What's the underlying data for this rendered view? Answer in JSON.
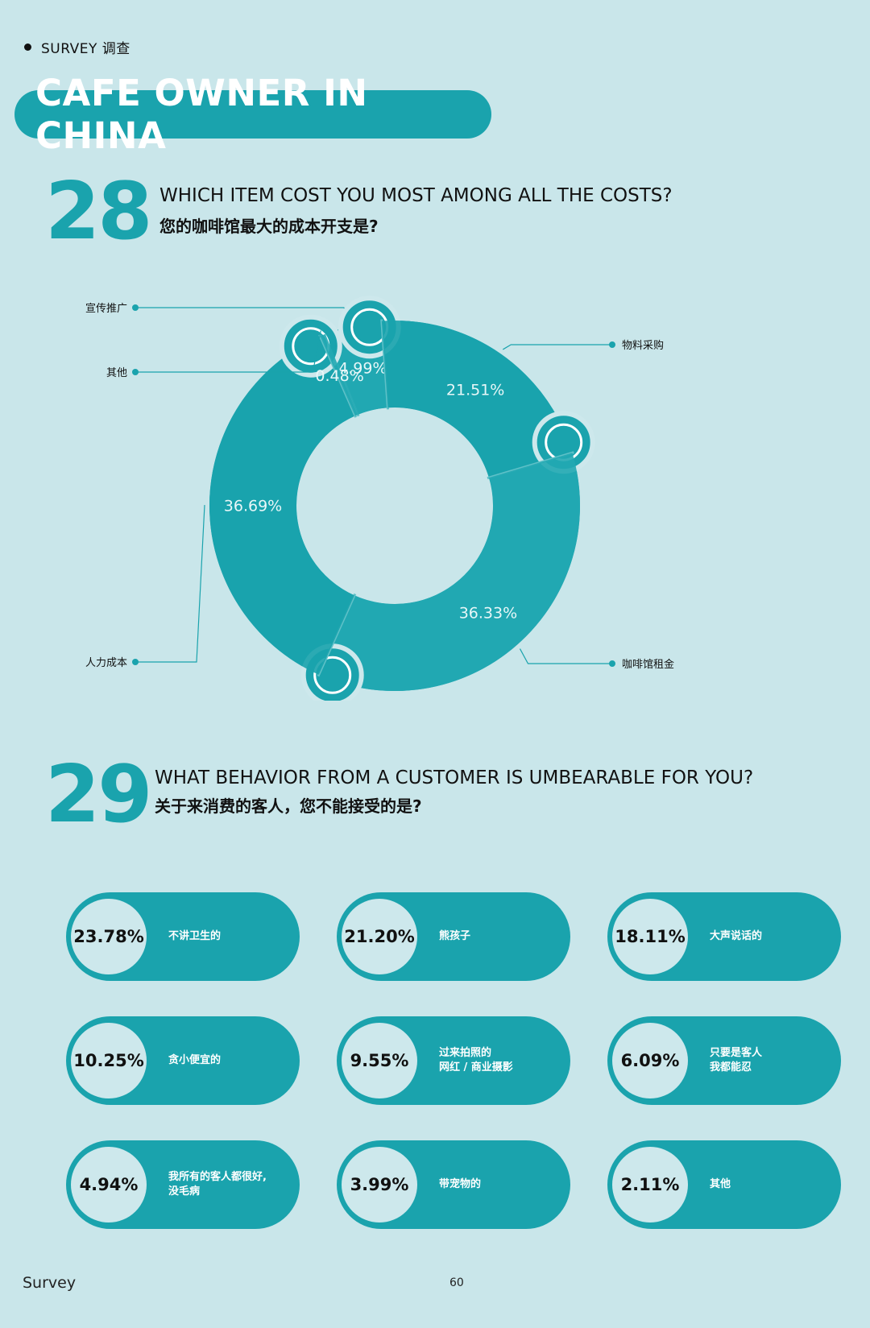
{
  "header": {
    "section_tag": "SURVEY 调查",
    "title": "CAFE OWNER IN CHINA"
  },
  "q28": {
    "number": "28",
    "question_en": "WHICH ITEM COST YOU MOST AMONG ALL THE COSTS?",
    "question_cn": "您的咖啡馆最大的成本开支是?"
  },
  "q29": {
    "number": "29",
    "question_en": "WHAT BEHAVIOR FROM A CUSTOMER IS UMBEARABLE FOR YOU?",
    "question_cn": "关于来消费的客人，您不能接受的是?"
  },
  "colors": {
    "background": "#c9e6ea",
    "accent": "#1aa3ad",
    "ring": "#1aa3ad",
    "inner": "#cde8ec"
  },
  "chart_data": [
    {
      "type": "pie",
      "variant": "donut",
      "slices": [
        {
          "label": "宣传推广",
          "value": 4.99,
          "display": "4.99%",
          "icon": "wechat-icon"
        },
        {
          "label": "物料采购",
          "value": 21.51,
          "display": "21.51%",
          "icon": "coffee-bean-icon"
        },
        {
          "label": "咖啡馆租金",
          "value": 36.33,
          "display": "36.33%",
          "icon": "house-icon"
        },
        {
          "label": "人力成本",
          "value": 36.69,
          "display": "36.69%",
          "icon": "people-icon"
        },
        {
          "label": "其他",
          "value": 0.48,
          "display": "0.48%",
          "icon": ""
        }
      ]
    },
    {
      "type": "table",
      "items": [
        {
          "value": 23.78,
          "display": "23.78%",
          "label": "不讲卫生的"
        },
        {
          "value": 21.2,
          "display": "21.20%",
          "label": "熊孩子"
        },
        {
          "value": 18.11,
          "display": "18.11%",
          "label": "大声说话的"
        },
        {
          "value": 10.25,
          "display": "10.25%",
          "label": "贪小便宜的"
        },
        {
          "value": 9.55,
          "display": "9.55%",
          "label": "过来拍照的\n网红 / 商业摄影"
        },
        {
          "value": 6.09,
          "display": "6.09%",
          "label": "只要是客人\n我都能忍"
        },
        {
          "value": 4.94,
          "display": "4.94%",
          "label": "我所有的客人都很好,\n没毛病"
        },
        {
          "value": 3.99,
          "display": "3.99%",
          "label": "带宠物的"
        },
        {
          "value": 2.11,
          "display": "2.11%",
          "label": "其他"
        }
      ]
    }
  ],
  "footer": {
    "left": "Survey",
    "page": "60"
  }
}
